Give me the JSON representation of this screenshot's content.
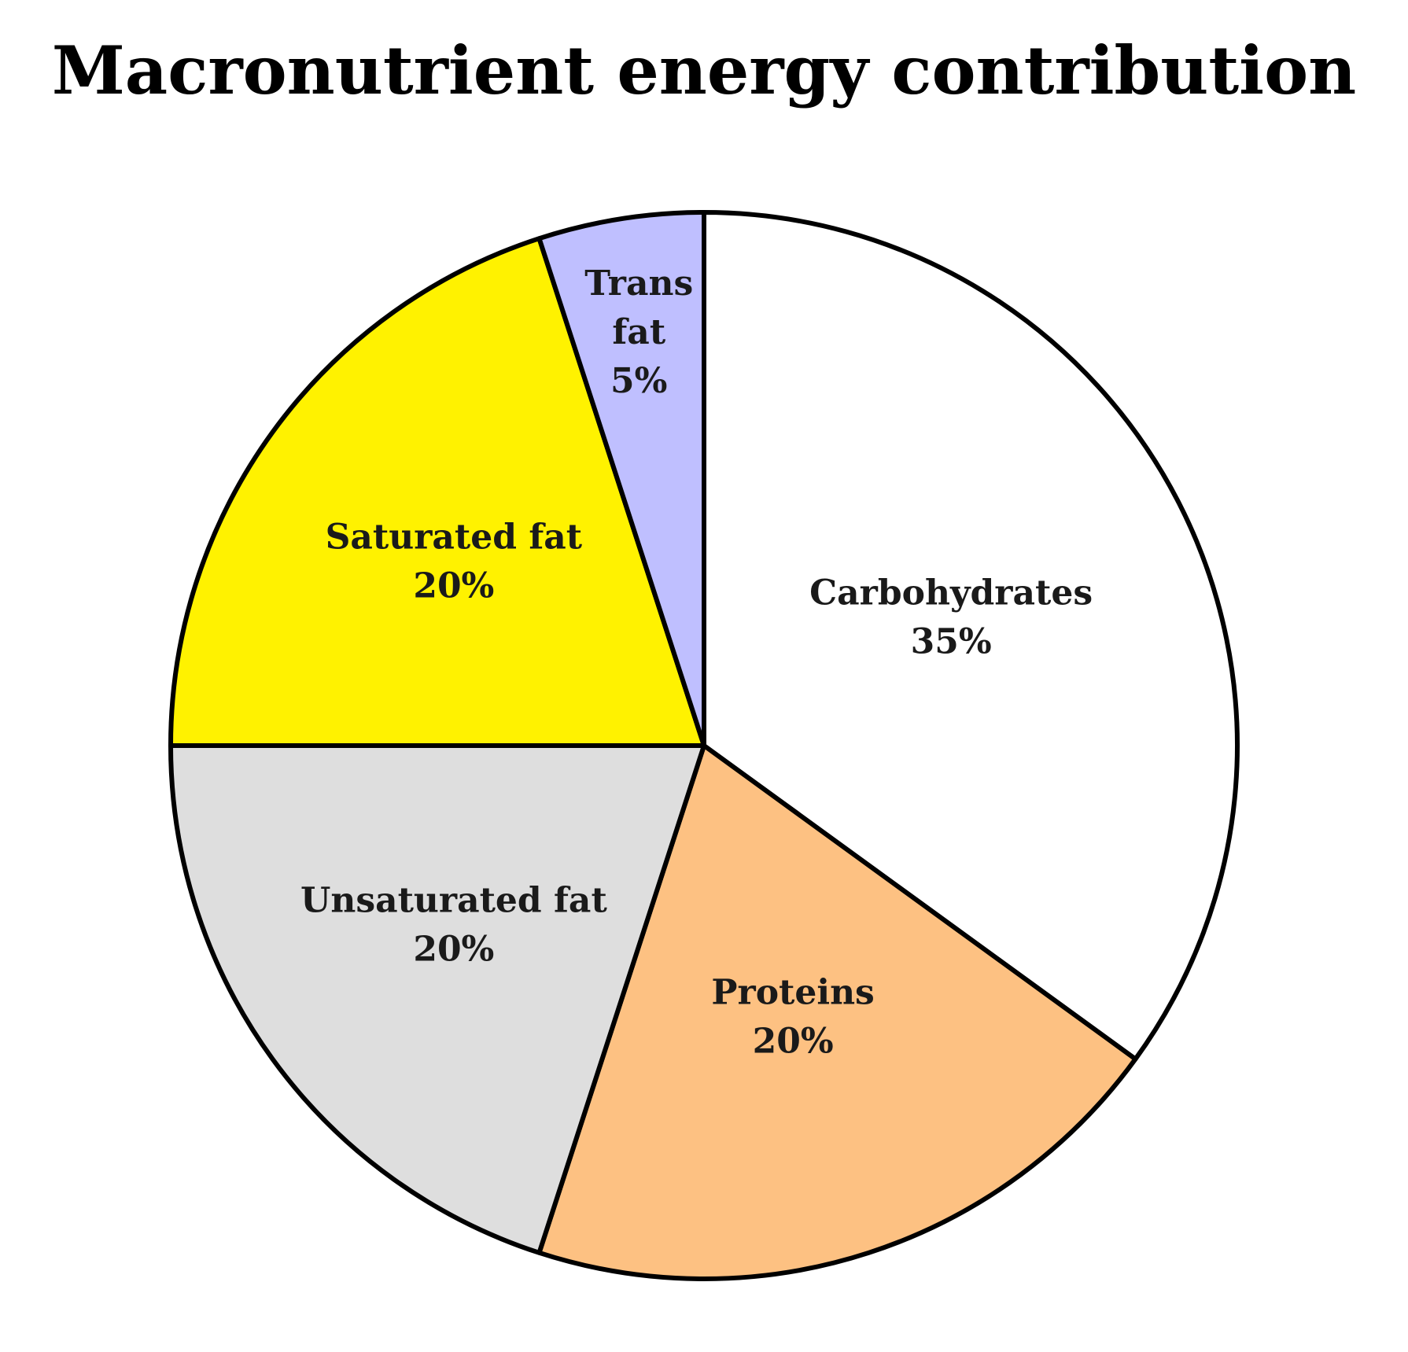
{
  "chart_data": {
    "type": "pie",
    "title": "Macronutrient energy contribution",
    "start_angle_deg": 90,
    "direction": "clockwise",
    "slices": [
      {
        "label": "Carbohydrates",
        "label_lines": [
          "Carbohydrates"
        ],
        "value": 35,
        "value_label": "35%",
        "color": "#ffffff"
      },
      {
        "label": "Proteins",
        "label_lines": [
          "Proteins"
        ],
        "value": 20,
        "value_label": "20%",
        "color": "#fdc182"
      },
      {
        "label": "Unsaturated fat",
        "label_lines": [
          "Unsaturated fat"
        ],
        "value": 20,
        "value_label": "20%",
        "color": "#dedede"
      },
      {
        "label": "Saturated fat",
        "label_lines": [
          "Saturated fat"
        ],
        "value": 20,
        "value_label": "20%",
        "color": "#fff200"
      },
      {
        "label": "Trans fat",
        "label_lines": [
          "Trans",
          "fat"
        ],
        "value": 5,
        "value_label": "5%",
        "color": "#bfbfff"
      }
    ]
  }
}
